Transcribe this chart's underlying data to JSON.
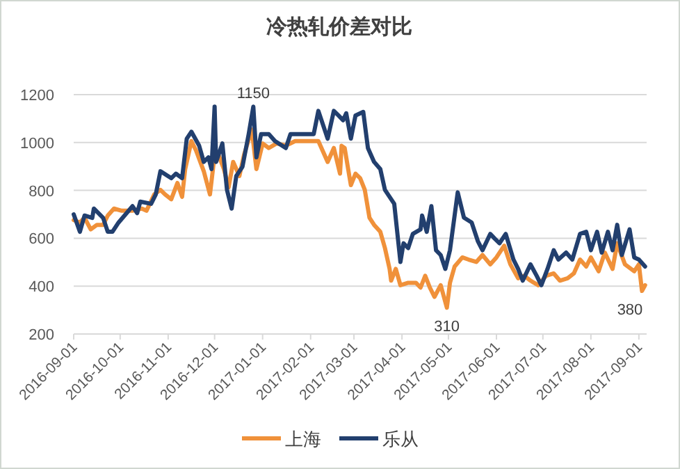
{
  "chart_data": {
    "type": "line",
    "title": "冷热轧价差对比",
    "series": [
      {
        "name": "上海",
        "color": "#f0913a",
        "x": [
          "2016-09-01",
          "2016-09-05",
          "2016-09-08",
          "2016-09-12",
          "2016-09-16",
          "2016-09-20",
          "2016-09-23",
          "2016-09-27",
          "2016-10-02",
          "2016-10-09",
          "2016-10-15",
          "2016-10-18",
          "2016-10-23",
          "2016-10-27",
          "2016-10-30",
          "2016-11-03",
          "2016-11-07",
          "2016-11-10",
          "2016-11-12",
          "2016-11-16",
          "2016-11-19",
          "2016-11-24",
          "2016-11-28",
          "2016-12-01",
          "2016-12-03",
          "2016-12-07",
          "2016-12-10",
          "2016-12-13",
          "2016-12-17",
          "2016-12-20",
          "2016-12-25",
          "2016-12-28",
          "2017-01-01",
          "2017-01-05",
          "2017-01-10",
          "2017-01-16",
          "2017-01-22",
          "2017-02-06",
          "2017-02-12",
          "2017-02-16",
          "2017-02-20",
          "2017-02-21",
          "2017-02-23",
          "2017-02-26",
          "2017-02-27",
          "2017-03-02",
          "2017-03-05",
          "2017-03-08",
          "2017-03-11",
          "2017-03-14",
          "2017-03-18",
          "2017-03-21",
          "2017-03-24",
          "2017-03-25",
          "2017-03-28",
          "2017-03-31",
          "2017-04-05",
          "2017-04-10",
          "2017-04-13",
          "2017-04-16",
          "2017-04-19",
          "2017-04-22",
          "2017-04-26",
          "2017-04-30",
          "2017-05-02",
          "2017-05-05",
          "2017-05-10",
          "2017-05-14",
          "2017-05-19",
          "2017-05-23",
          "2017-05-28",
          "2017-06-01",
          "2017-06-06",
          "2017-06-10",
          "2017-06-15",
          "2017-06-19",
          "2017-06-23",
          "2017-06-28",
          "2017-07-03",
          "2017-07-08",
          "2017-07-12",
          "2017-07-17",
          "2017-07-21",
          "2017-07-25",
          "2017-07-29",
          "2017-08-01",
          "2017-08-06",
          "2017-08-10",
          "2017-08-15",
          "2017-08-18",
          "2017-08-23",
          "2017-08-29",
          "2017-09-01",
          "2017-09-03",
          "2017-09-05"
        ],
        "values": [
          676,
          666,
          686,
          637,
          656,
          656,
          695,
          724,
          715,
          715,
          724,
          715,
          783,
          802,
          783,
          763,
          831,
          773,
          889,
          1006,
          967,
          880,
          783,
          948,
          957,
          889,
          812,
          919,
          860,
          948,
          1054,
          889,
          996,
          977,
          996,
          987,
          1006,
          1006,
          919,
          977,
          870,
          986,
          977,
          860,
          822,
          870,
          851,
          802,
          686,
          656,
          627,
          559,
          472,
          423,
          472,
          404,
          414,
          414,
          394,
          443,
          394,
          355,
          404,
          310,
          414,
          482,
          520,
          511,
          501,
          530,
          491,
          520,
          569,
          491,
          433,
          443,
          423,
          404,
          443,
          453,
          423,
          433,
          453,
          511,
          482,
          520,
          462,
          540,
          472,
          579,
          491,
          462,
          491,
          380,
          404
        ]
      },
      {
        "name": "乐从",
        "color": "#223f6e",
        "x": [
          "2016-09-01",
          "2016-09-05",
          "2016-09-08",
          "2016-09-13",
          "2016-09-14",
          "2016-09-20",
          "2016-09-23",
          "2016-09-26",
          "2016-09-30",
          "2016-10-09",
          "2016-10-12",
          "2016-10-14",
          "2016-10-21",
          "2016-10-24",
          "2016-10-27",
          "2016-11-03",
          "2016-11-06",
          "2016-11-10",
          "2016-11-13",
          "2016-11-16",
          "2016-11-21",
          "2016-11-24",
          "2016-11-27",
          "2016-11-29",
          "2016-12-01",
          "2016-12-02",
          "2016-12-06",
          "2016-12-09",
          "2016-12-12",
          "2016-12-15",
          "2016-12-19",
          "2016-12-23",
          "2016-12-26",
          "2016-12-28",
          "2016-12-31",
          "2017-01-05",
          "2017-01-09",
          "2017-01-16",
          "2017-01-19",
          "2017-02-03",
          "2017-02-06",
          "2017-02-12",
          "2017-02-16",
          "2017-02-19",
          "2017-02-22",
          "2017-02-24",
          "2017-02-27",
          "2017-03-02",
          "2017-03-07",
          "2017-03-10",
          "2017-03-14",
          "2017-03-18",
          "2017-03-21",
          "2017-03-24",
          "2017-03-27",
          "2017-03-31",
          "2017-04-02",
          "2017-04-05",
          "2017-04-08",
          "2017-04-13",
          "2017-04-14",
          "2017-04-17",
          "2017-04-20",
          "2017-04-23",
          "2017-04-26",
          "2017-04-29",
          "2017-05-02",
          "2017-05-07",
          "2017-05-11",
          "2017-05-16",
          "2017-05-20",
          "2017-05-23",
          "2017-05-28",
          "2017-05-31",
          "2017-06-03",
          "2017-06-07",
          "2017-06-12",
          "2017-06-15",
          "2017-06-18",
          "2017-06-23",
          "2017-06-27",
          "2017-06-30",
          "2017-07-04",
          "2017-07-08",
          "2017-07-11",
          "2017-07-16",
          "2017-07-20",
          "2017-07-25",
          "2017-07-29",
          "2017-08-01",
          "2017-08-05",
          "2017-08-08",
          "2017-08-12",
          "2017-08-15",
          "2017-08-18",
          "2017-08-21",
          "2017-08-26",
          "2017-08-29",
          "2017-09-01",
          "2017-09-05"
        ],
        "values": [
          700,
          627,
          695,
          685,
          724,
          685,
          627,
          627,
          666,
          734,
          705,
          753,
          744,
          783,
          880,
          851,
          870,
          851,
          1016,
          1045,
          987,
          919,
          938,
          889,
          1150,
          919,
          996,
          802,
          724,
          860,
          899,
          1035,
          1150,
          938,
          1035,
          1035,
          1006,
          977,
          1035,
          1035,
          1132,
          1016,
          1132,
          1113,
          1093,
          1122,
          1016,
          1113,
          1128,
          977,
          919,
          889,
          802,
          773,
          744,
          501,
          579,
          559,
          618,
          637,
          695,
          627,
          734,
          550,
          530,
          472,
          550,
          792,
          686,
          666,
          588,
          550,
          618,
          598,
          579,
          618,
          511,
          472,
          423,
          491,
          443,
          404,
          472,
          550,
          511,
          540,
          511,
          618,
          627,
          550,
          627,
          540,
          627,
          550,
          656,
          530,
          637,
          520,
          511,
          482
        ]
      }
    ],
    "xlim": [
      "2016-09-01",
      "2017-09-06"
    ],
    "xticks": [
      "2016-09-01",
      "2016-10-01",
      "2016-11-01",
      "2016-12-01",
      "2017-01-01",
      "2017-02-01",
      "2017-03-01",
      "2017-04-01",
      "2017-05-01",
      "2017-06-01",
      "2017-07-01",
      "2017-08-01",
      "2017-09-01"
    ],
    "ylim": [
      200,
      1200
    ],
    "yticks": [
      200,
      400,
      600,
      800,
      1000,
      1200
    ],
    "grid": "y",
    "legend": "bottom",
    "annotations": [
      {
        "text": "1150",
        "x": "2016-12-26",
        "y": 1150
      },
      {
        "text": "310",
        "x": "2017-04-30",
        "y": 310
      },
      {
        "text": "380",
        "x": "2017-09-03",
        "y": 380
      }
    ]
  }
}
